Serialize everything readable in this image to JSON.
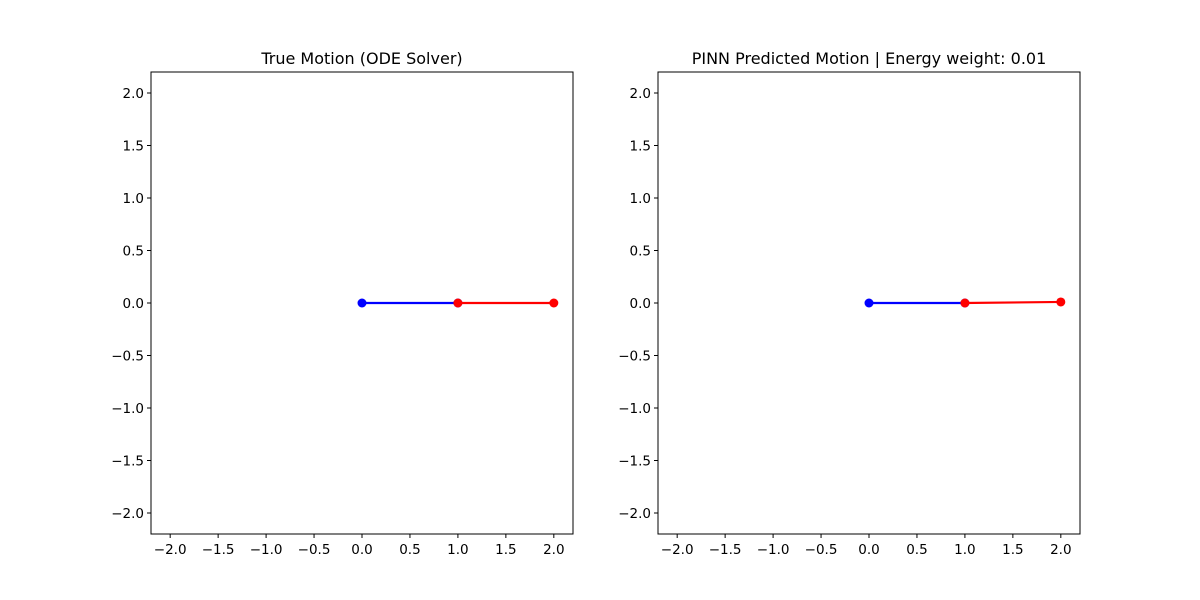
{
  "chart_data": [
    {
      "type": "line",
      "title": "True Motion (ODE Solver)",
      "xlim": [
        -2.2,
        2.2
      ],
      "ylim": [
        -2.2,
        2.2
      ],
      "xticks": [
        "−2.0",
        "−1.5",
        "−1.0",
        "−0.5",
        "0.0",
        "0.5",
        "1.0",
        "1.5",
        "2.0"
      ],
      "xtick_values": [
        -2.0,
        -1.5,
        -1.0,
        -0.5,
        0.0,
        0.5,
        1.0,
        1.5,
        2.0
      ],
      "yticks": [
        "2.0",
        "1.5",
        "1.0",
        "0.5",
        "0.0",
        "−0.5",
        "−1.0",
        "−1.5",
        "−2.0"
      ],
      "ytick_values": [
        2.0,
        1.5,
        1.0,
        0.5,
        0.0,
        -0.5,
        -1.0,
        -1.5,
        -2.0
      ],
      "grid": false,
      "series": [
        {
          "color": "#0000ff",
          "x": [
            0.0,
            1.0
          ],
          "y": [
            0.0,
            0.0
          ]
        },
        {
          "color": "#ff0000",
          "x": [
            1.0,
            2.0
          ],
          "y": [
            0.0,
            0.0
          ]
        }
      ]
    },
    {
      "type": "line",
      "title": "PINN Predicted Motion | Energy weight: 0.01",
      "xlim": [
        -2.2,
        2.2
      ],
      "ylim": [
        -2.2,
        2.2
      ],
      "xticks": [
        "−2.0",
        "−1.5",
        "−1.0",
        "−0.5",
        "0.0",
        "0.5",
        "1.0",
        "1.5",
        "2.0"
      ],
      "xtick_values": [
        -2.0,
        -1.5,
        -1.0,
        -0.5,
        0.0,
        0.5,
        1.0,
        1.5,
        2.0
      ],
      "yticks": [
        "2.0",
        "1.5",
        "1.0",
        "0.5",
        "0.0",
        "−0.5",
        "−1.0",
        "−1.5",
        "−2.0"
      ],
      "ytick_values": [
        2.0,
        1.5,
        1.0,
        0.5,
        0.0,
        -0.5,
        -1.0,
        -1.5,
        -2.0
      ],
      "grid": false,
      "series": [
        {
          "color": "#0000ff",
          "x": [
            0.0,
            1.0
          ],
          "y": [
            0.0,
            0.0
          ]
        },
        {
          "color": "#ff0000",
          "x": [
            1.0,
            2.0
          ],
          "y": [
            0.0,
            0.01
          ]
        }
      ]
    }
  ]
}
